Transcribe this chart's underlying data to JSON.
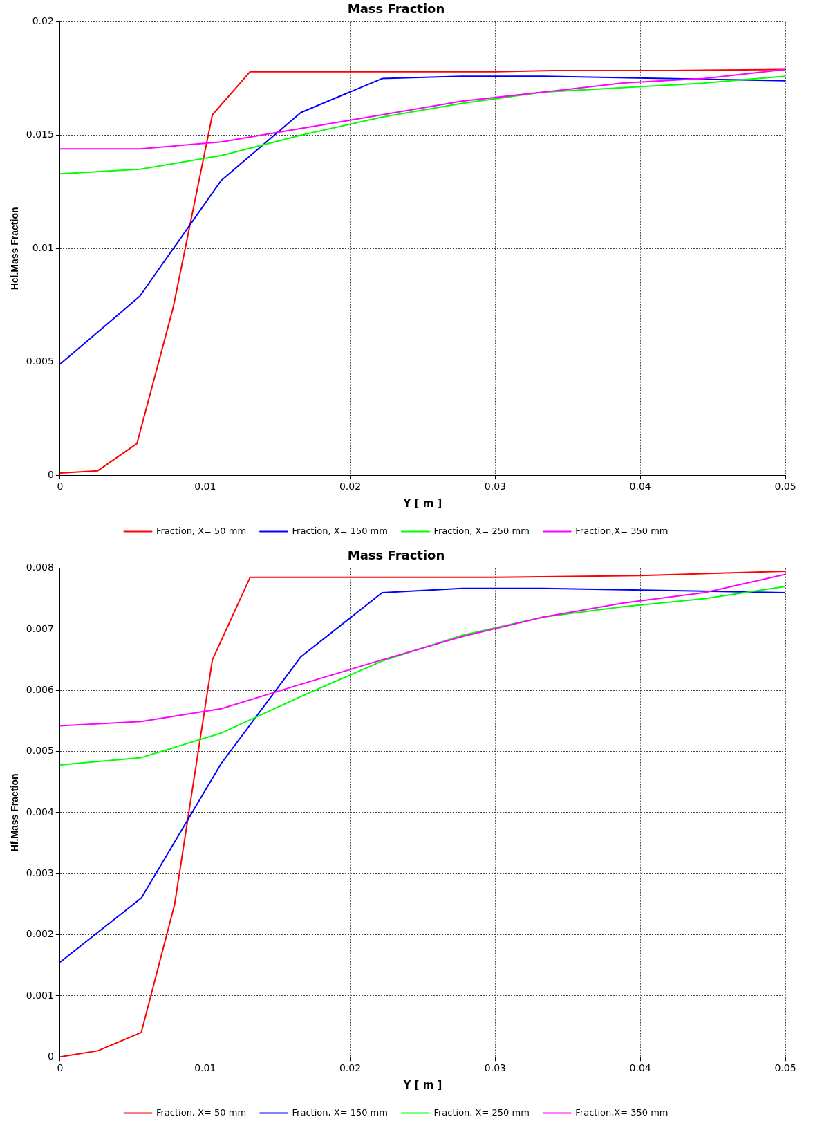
{
  "chart_data": [
    {
      "type": "line",
      "title": "Mass Fraction",
      "xlabel": "Y [ m ]",
      "ylabel": "Hcl.Mass Fraction",
      "xlim": [
        0,
        0.05
      ],
      "xticks": [
        0,
        0.01,
        0.02,
        0.03,
        0.04,
        0.05
      ],
      "ylim": [
        0,
        0.02
      ],
      "yticks": [
        0,
        0.005,
        0.01,
        0.015,
        0.02
      ],
      "grid": true,
      "legend": "bottom",
      "marker": "none",
      "line_style": "solid",
      "series": [
        {
          "name": "Fraction, X= 50 mm",
          "color": "#ff0000",
          "x": [
            0,
            0.0026,
            0.0053,
            0.0078,
            0.0105,
            0.0131,
            0.02,
            0.03,
            0.034,
            0.042,
            0.05
          ],
          "values": [
            0.0001,
            0.0002,
            0.0014,
            0.0074,
            0.0159,
            0.0178,
            0.0178,
            0.0178,
            0.01785,
            0.01785,
            0.0179
          ]
        },
        {
          "name": "Fraction, X= 150 mm",
          "color": "#0000ff",
          "x": [
            0,
            0.0055,
            0.0111,
            0.0166,
            0.0222,
            0.0277,
            0.0333,
            0.05
          ],
          "values": [
            0.0049,
            0.0079,
            0.013,
            0.016,
            0.0175,
            0.0176,
            0.0176,
            0.0174
          ]
        },
        {
          "name": "Fraction, X= 250 mm",
          "color": "#00ff00",
          "x": [
            0,
            0.0055,
            0.0111,
            0.0166,
            0.0222,
            0.0277,
            0.0333,
            0.0388,
            0.0444,
            0.05
          ],
          "values": [
            0.0133,
            0.0135,
            0.0141,
            0.015,
            0.0158,
            0.0164,
            0.0169,
            0.0171,
            0.0173,
            0.0176
          ]
        },
        {
          "name": "Fraction,X= 350 mm",
          "color": "#ff00ff",
          "x": [
            0,
            0.0055,
            0.0111,
            0.0166,
            0.0222,
            0.0277,
            0.0333,
            0.0388,
            0.0444,
            0.05
          ],
          "values": [
            0.0144,
            0.0144,
            0.0147,
            0.0153,
            0.0159,
            0.0165,
            0.0169,
            0.0173,
            0.0175,
            0.0179
          ]
        }
      ]
    },
    {
      "type": "line",
      "title": "Mass Fraction",
      "xlabel": "Y [ m ]",
      "ylabel": "Hf.Mass Fraction",
      "xlim": [
        0,
        0.05
      ],
      "xticks": [
        0,
        0.01,
        0.02,
        0.03,
        0.04,
        0.05
      ],
      "ylim": [
        0,
        0.008
      ],
      "yticks": [
        0,
        0.001,
        0.002,
        0.003,
        0.004,
        0.005,
        0.006,
        0.007,
        0.008
      ],
      "grid": true,
      "legend": "bottom",
      "marker": "none",
      "line_style": "solid",
      "series": [
        {
          "name": "Fraction, X= 50 mm",
          "color": "#ff0000",
          "x": [
            0,
            0.0026,
            0.0056,
            0.0079,
            0.0105,
            0.0131,
            0.03,
            0.04,
            0.05
          ],
          "values": [
            0,
            0.0001,
            0.0004,
            0.0025,
            0.0065,
            0.00785,
            0.00785,
            0.00788,
            0.00795
          ]
        },
        {
          "name": "Fraction, X= 150 mm",
          "color": "#0000ff",
          "x": [
            0,
            0.0056,
            0.0111,
            0.0166,
            0.0222,
            0.0277,
            0.0333,
            0.05
          ],
          "values": [
            0.00155,
            0.0026,
            0.0048,
            0.00655,
            0.0076,
            0.00767,
            0.00767,
            0.0076
          ]
        },
        {
          "name": "Fraction, X= 250 mm",
          "color": "#00ff00",
          "x": [
            0,
            0.0056,
            0.0111,
            0.0166,
            0.0222,
            0.0277,
            0.0333,
            0.0388,
            0.0444,
            0.05
          ],
          "values": [
            0.00478,
            0.0049,
            0.0053,
            0.0059,
            0.00648,
            0.0069,
            0.0072,
            0.00737,
            0.0075,
            0.0077
          ]
        },
        {
          "name": "Fraction,X= 350 mm",
          "color": "#ff00ff",
          "x": [
            0,
            0.0056,
            0.0111,
            0.0166,
            0.0222,
            0.0277,
            0.0333,
            0.0388,
            0.0444,
            0.05
          ],
          "values": [
            0.00542,
            0.00549,
            0.0057,
            0.0061,
            0.0065,
            0.00688,
            0.0072,
            0.00743,
            0.0076,
            0.0079
          ]
        }
      ]
    }
  ]
}
